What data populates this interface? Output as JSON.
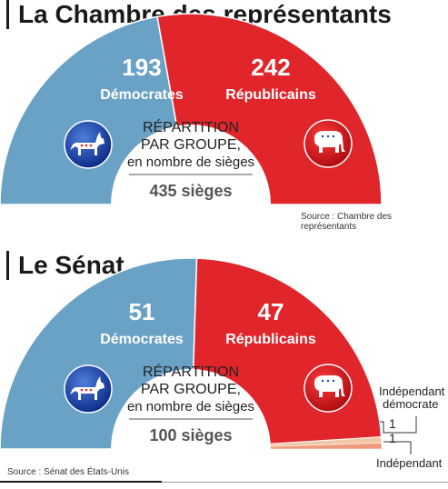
{
  "chart_data": [
    {
      "type": "pie",
      "title": "La Chambre des représentants",
      "subtitle": "RÉPARTITION PAR GROUPE, en nombre de sièges",
      "center_lines": [
        "RÉPARTITION",
        "PAR GROUPE,",
        "en nombre de sièges"
      ],
      "total_label": "435 sièges",
      "total": 435,
      "source": "Source : Chambre des représentants",
      "categories": [
        "Démocrates",
        "Républicains"
      ],
      "values": [
        193,
        242
      ],
      "colors": [
        "#6aa2c6",
        "#e0252b"
      ]
    },
    {
      "type": "pie",
      "title": "Le Sénat",
      "subtitle": "RÉPARTITION PAR GROUPE, en nombre de sièges",
      "center_lines": [
        "RÉPARTITION",
        "PAR GROUPE,",
        "en nombre de sièges"
      ],
      "total_label": "100 sièges",
      "total": 100,
      "source": "Source : Sénat des États-Unis",
      "categories": [
        "Démocrates",
        "Républicains",
        "Indépendant démocrate",
        "Indépendant"
      ],
      "values": [
        51,
        47,
        1,
        1
      ],
      "legend_labels": [
        "Indépendant",
        "démocrate",
        "Indépendant"
      ],
      "colors": [
        "#6aa2c6",
        "#e0252b",
        "#f1c7a8",
        "#ef9a7a"
      ]
    }
  ],
  "icons": {
    "democrat": "donkey-icon",
    "republican": "elephant-icon"
  }
}
